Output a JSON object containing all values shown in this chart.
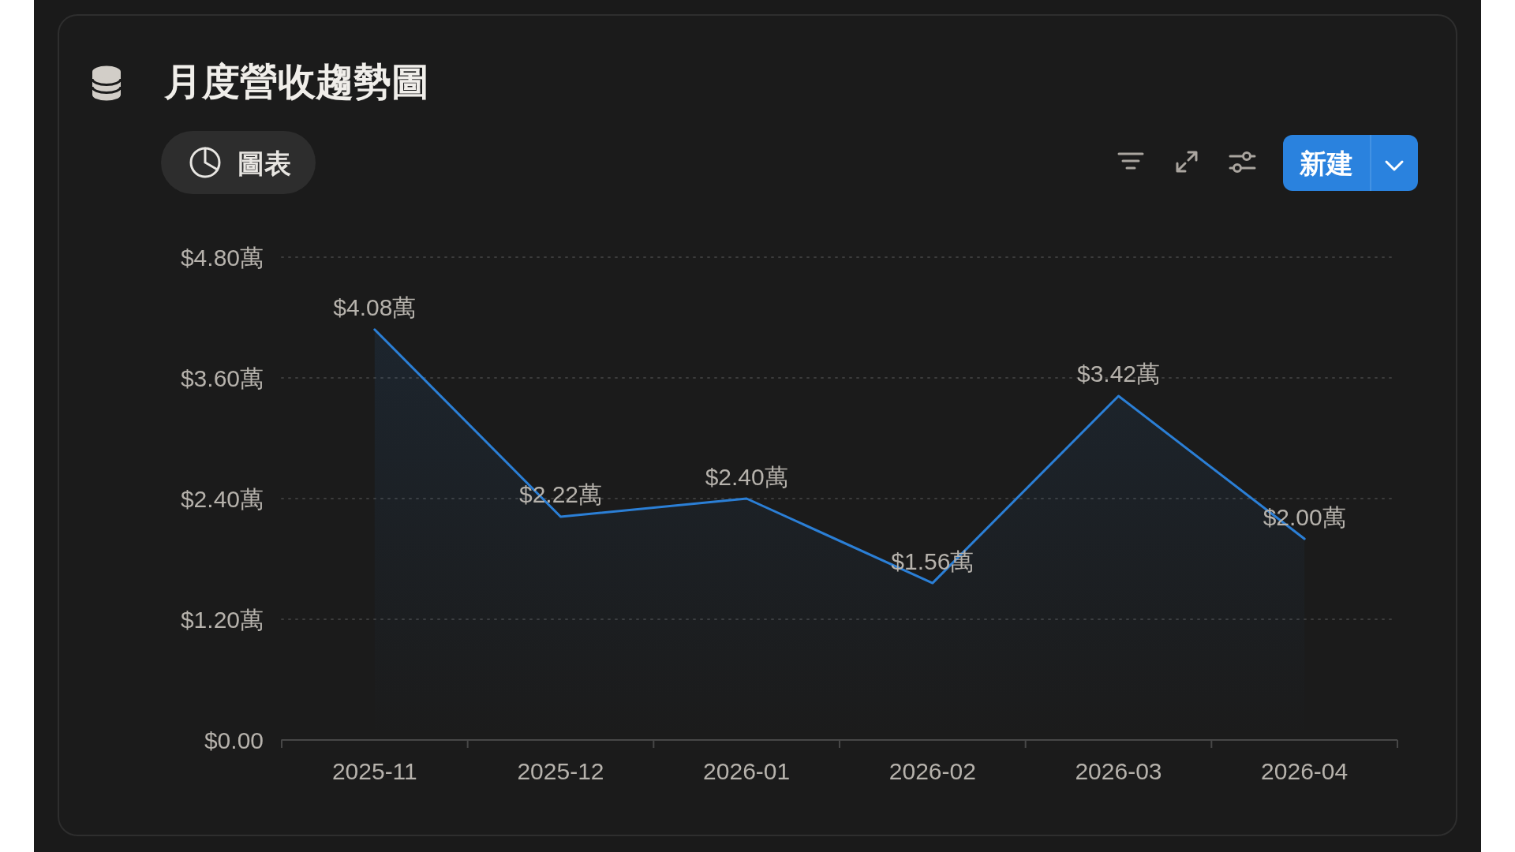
{
  "chart_data": {
    "type": "area",
    "title": "月度營收趨勢圖",
    "categories": [
      "2025-11",
      "2025-12",
      "2026-01",
      "2026-02",
      "2026-03",
      "2026-04"
    ],
    "values": [
      4.08,
      2.22,
      2.4,
      1.56,
      3.42,
      2.0
    ],
    "color": "#2b7fd6",
    "value_labels": [
      "$4.08萬",
      "$2.22萬",
      "$2.40萬",
      "$1.56萬",
      "$3.42萬",
      "$2.00萬"
    ],
    "ylim": [
      0,
      4.8
    ],
    "yticks": [
      {
        "value": 0,
        "label": "$0.00"
      },
      {
        "value": 1.2,
        "label": "$1.20萬"
      },
      {
        "value": 2.4,
        "label": "$2.40萬"
      },
      {
        "value": 3.6,
        "label": "$3.60萬"
      },
      {
        "value": 4.8,
        "label": "$4.80萬"
      }
    ],
    "grid": "y",
    "annotations": [
      "圖表",
      "新建"
    ]
  }
}
